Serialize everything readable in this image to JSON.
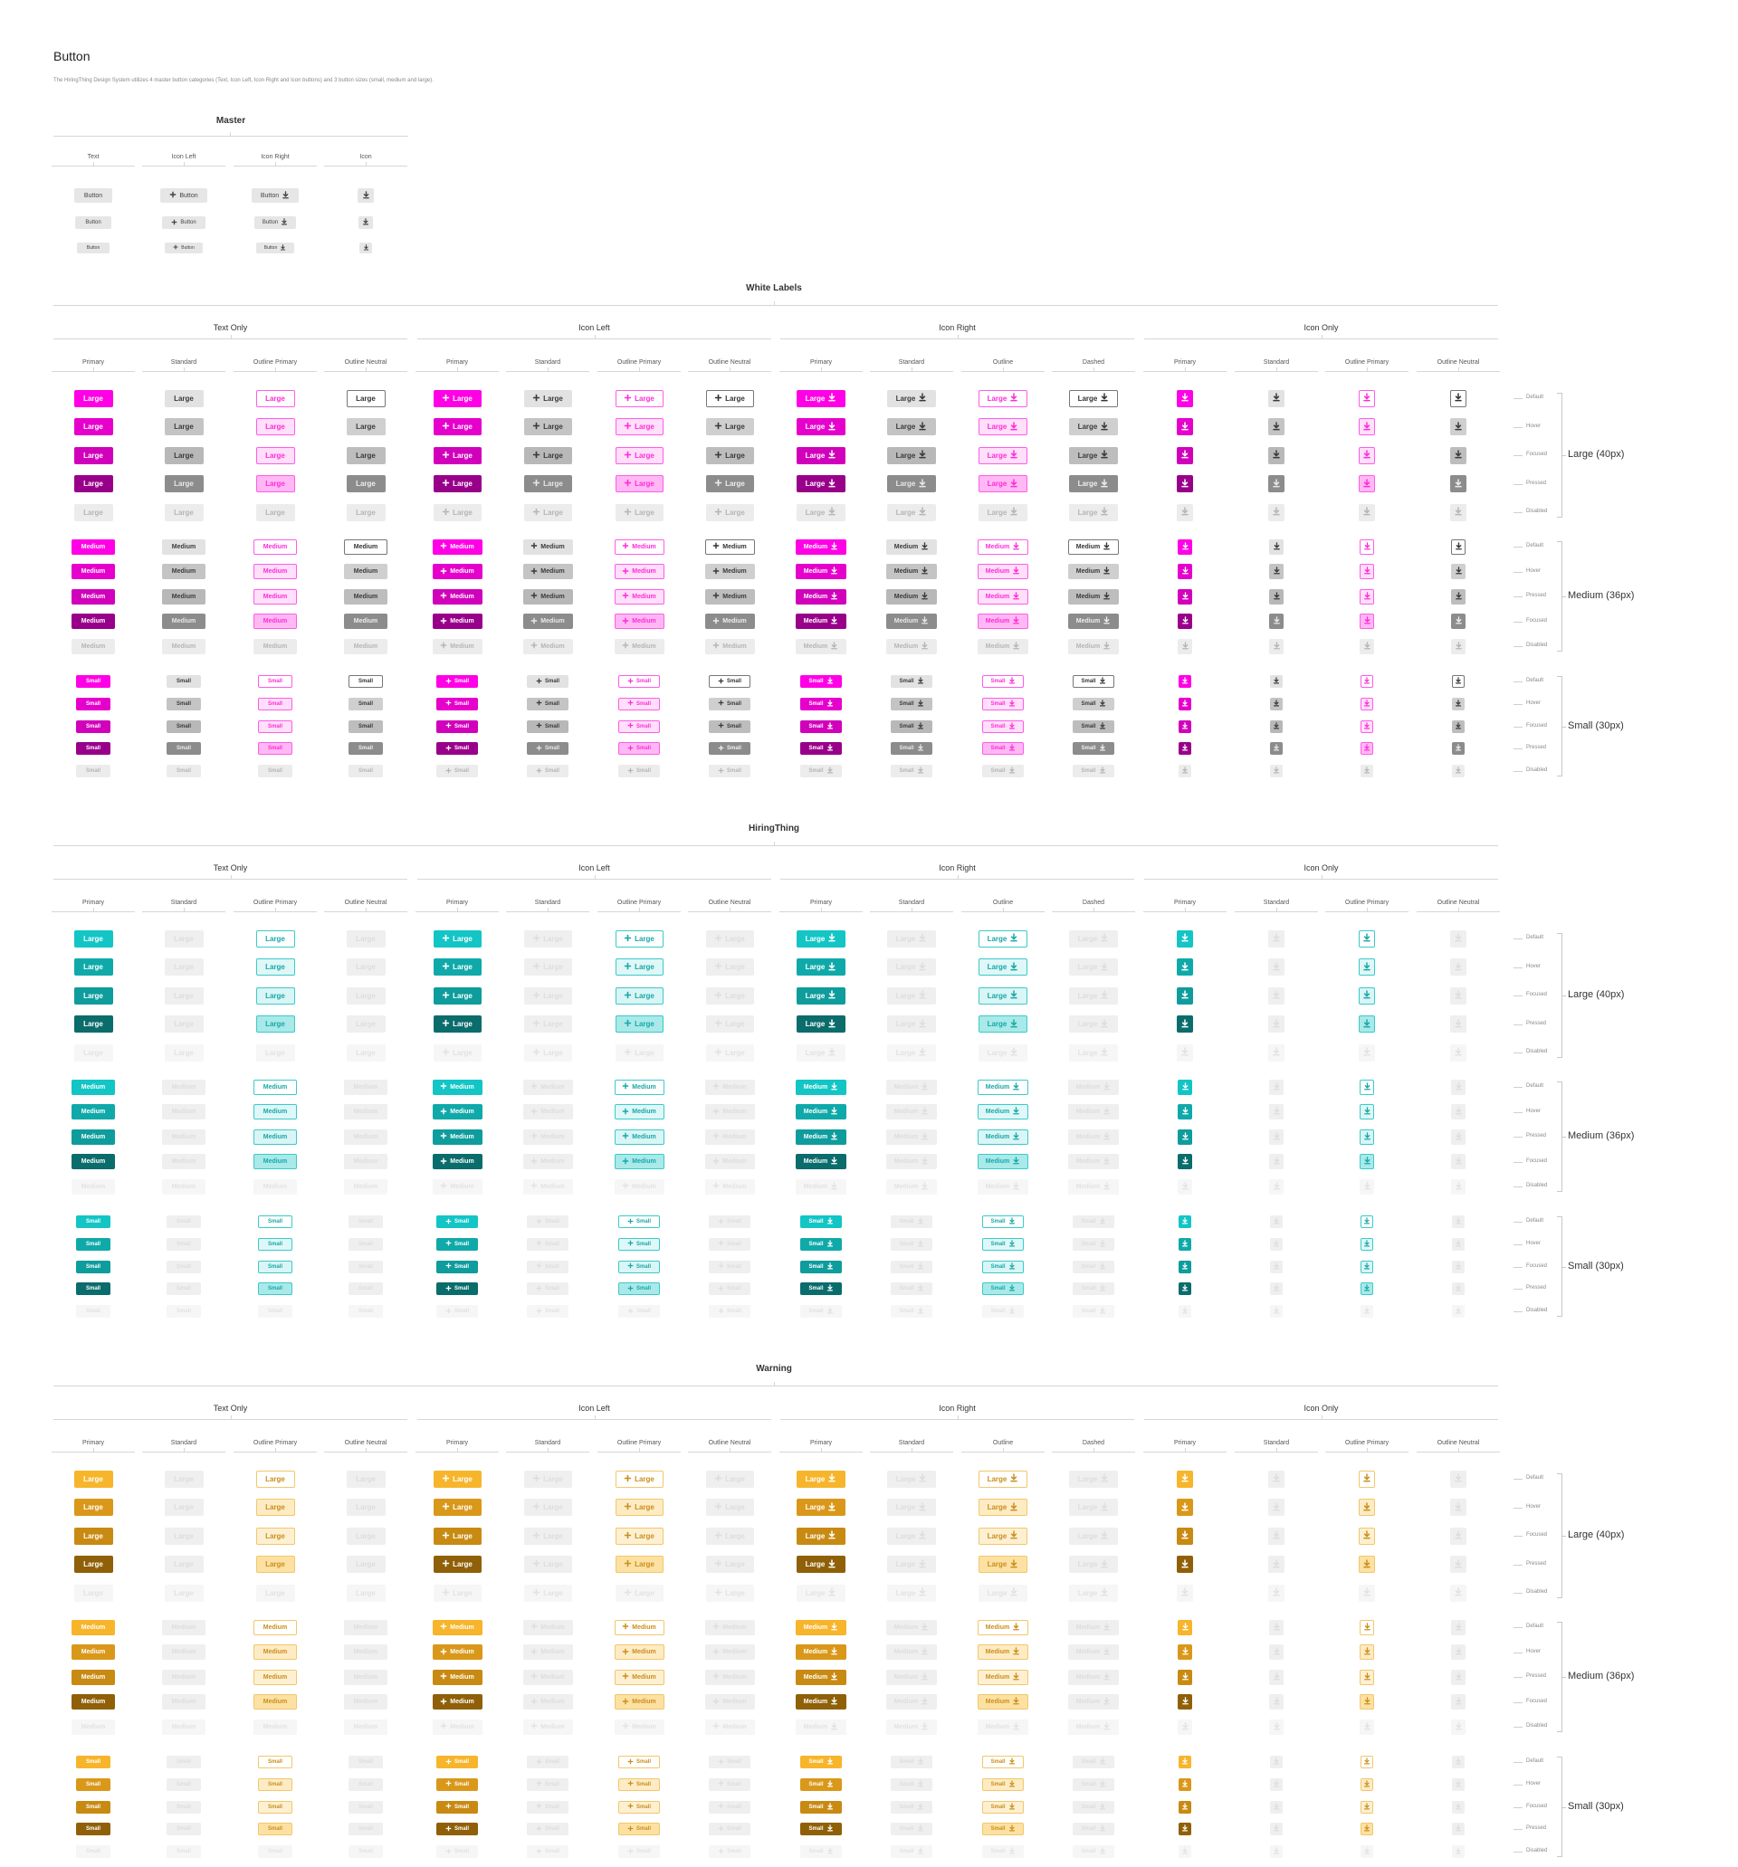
{
  "page": {
    "title": "Button",
    "description": "The HiringThing Design System utilizes 4 master button categories (Text, Icon Left, Icon Right and Icon buttons) and 3 button sizes (small, medium and large)."
  },
  "master": {
    "title": "Master",
    "columns": [
      "Text",
      "Icon Left",
      "Icon Right",
      "Icon"
    ],
    "button_label": "Button"
  },
  "groups": [
    "Text Only",
    "Icon Left",
    "Icon Right",
    "Icon Only"
  ],
  "sizes": [
    {
      "key": "large",
      "label": "Large (40px)",
      "button_text": "Large"
    },
    {
      "key": "medium",
      "label": "Medium (36px)",
      "button_text": "Medium"
    },
    {
      "key": "small",
      "label": "Small (30px)",
      "button_text": "Small"
    }
  ],
  "sections": [
    {
      "title": "White Labels",
      "theme": "magenta",
      "columns": [
        "Primary",
        "Standard",
        "Outline Primary",
        "Outline Neutral",
        "Primary",
        "Standard",
        "Outline Primary",
        "Outline Neutral",
        "Primary",
        "Standard",
        "Outline",
        "Dashed",
        "Primary",
        "Standard",
        "Outline Primary",
        "Outline Neutral"
      ],
      "states": {
        "large": [
          "Default",
          "Hover",
          "Focused",
          "Pressed",
          "Disabled"
        ],
        "medium": [
          "Default",
          "Hover",
          "Pressed",
          "Focused",
          "Disabled"
        ],
        "small": [
          "Default",
          "Hover",
          "Focused",
          "Pressed",
          "Disabled"
        ]
      }
    },
    {
      "title": "HiringThing",
      "theme": "teal",
      "columns": [
        "Primary",
        "Standard",
        "Outline Primary",
        "Outline Neutral",
        "Primary",
        "Standard",
        "Outline Primary",
        "Outline Neutral",
        "Primary",
        "Standard",
        "Outline",
        "Dashed",
        "Primary",
        "Standard",
        "Outline Primary",
        "Outline Neutral"
      ],
      "states": {
        "large": [
          "Default",
          "Hover",
          "Focused",
          "Pressed",
          "Disabled"
        ],
        "medium": [
          "Default",
          "Hover",
          "Pressed",
          "Focused",
          "Disabled"
        ],
        "small": [
          "Default",
          "Hover",
          "Focused",
          "Pressed",
          "Disabled"
        ]
      }
    },
    {
      "title": "Warning",
      "theme": "amber",
      "columns": [
        "Primary",
        "Standard",
        "Outline Primary",
        "Outline Neutral",
        "Primary",
        "Standard",
        "Outline Primary",
        "Outline Neutral",
        "Primary",
        "Standard",
        "Outline",
        "Dashed",
        "Primary",
        "Standard",
        "Outline Primary",
        "Outline Neutral"
      ],
      "states": {
        "large": [
          "Default",
          "Hover",
          "Focused",
          "Pressed",
          "Disabled"
        ],
        "medium": [
          "Default",
          "Hover",
          "Pressed",
          "Focused",
          "Disabled"
        ],
        "small": [
          "Default",
          "Hover",
          "Focused",
          "Pressed",
          "Disabled"
        ]
      }
    }
  ],
  "themes": {
    "magenta": {
      "primary": [
        "#ff00e6",
        "#e600cc",
        "#d100bb",
        "#99008a",
        "#e8e8e8"
      ],
      "outline_fill": [
        "#ffffff",
        "#ffdff9",
        "#ffdff9",
        "#ffb8f3",
        "#ffffff"
      ],
      "outline_border": "#ff5ce9",
      "outline_text": "#ff2ad9",
      "standard_muted": false
    },
    "teal": {
      "primary": [
        "#13c5c5",
        "#10a9a9",
        "#0f9c9c",
        "#0b6c6c",
        "#f2f2f2"
      ],
      "outline_fill": [
        "#ffffff",
        "#dff7f7",
        "#d9f5f5",
        "#a9e9e9",
        "#ffffff"
      ],
      "outline_border": "#3bcaca",
      "outline_text": "#17a8a8",
      "standard_muted": true
    },
    "amber": {
      "primary": [
        "#f7b52c",
        "#d9981a",
        "#c88a12",
        "#8f6008",
        "#f2f2f2"
      ],
      "outline_fill": [
        "#ffffff",
        "#fdebc4",
        "#fdf0d2",
        "#fde1a2",
        "#ffffff"
      ],
      "outline_border": "#f1c76a",
      "outline_text": "#c98f1c",
      "standard_muted": true
    }
  },
  "icons": {
    "left": "plus-icon",
    "right": "download-icon"
  }
}
